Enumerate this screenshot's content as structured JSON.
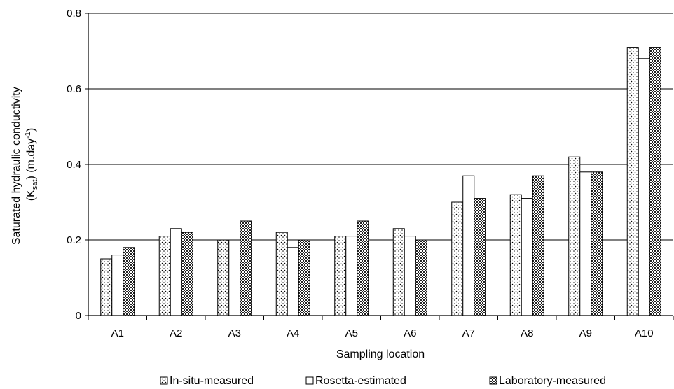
{
  "chart_data": {
    "type": "bar",
    "categories": [
      "A1",
      "A2",
      "A3",
      "A4",
      "A5",
      "A6",
      "A7",
      "A8",
      "A9",
      "A10"
    ],
    "series": [
      {
        "name": "In-situ-measured",
        "values": [
          0.15,
          0.21,
          0.2,
          0.22,
          0.21,
          0.23,
          0.3,
          0.32,
          0.42,
          0.71
        ],
        "pattern": "dots"
      },
      {
        "name": "Rosetta-estimated",
        "values": [
          0.16,
          0.23,
          0.2,
          0.18,
          0.21,
          0.21,
          0.37,
          0.31,
          0.38,
          0.68
        ],
        "pattern": "plain"
      },
      {
        "name": "Laboratory-measured",
        "values": [
          0.18,
          0.22,
          0.25,
          0.2,
          0.25,
          0.2,
          0.31,
          0.37,
          0.38,
          0.71
        ],
        "pattern": "checker"
      }
    ],
    "xlabel": "Sampling location",
    "ylabel_line1": "Saturated hydraulic conductivity",
    "ylabel_line2_prefix": "(K",
    "ylabel_line2_sub": "sat",
    "ylabel_line2_mid": ") (m.day",
    "ylabel_line2_sup": "-1",
    "ylabel_line2_suffix": ")",
    "ylim": [
      0,
      0.8
    ],
    "yticks": [
      "0",
      "0.2",
      "0.4",
      "0.6",
      "0.8"
    ],
    "ytick_values": [
      0,
      0.2,
      0.4,
      0.6,
      0.8
    ],
    "grid": true,
    "legend_position": "bottom"
  }
}
